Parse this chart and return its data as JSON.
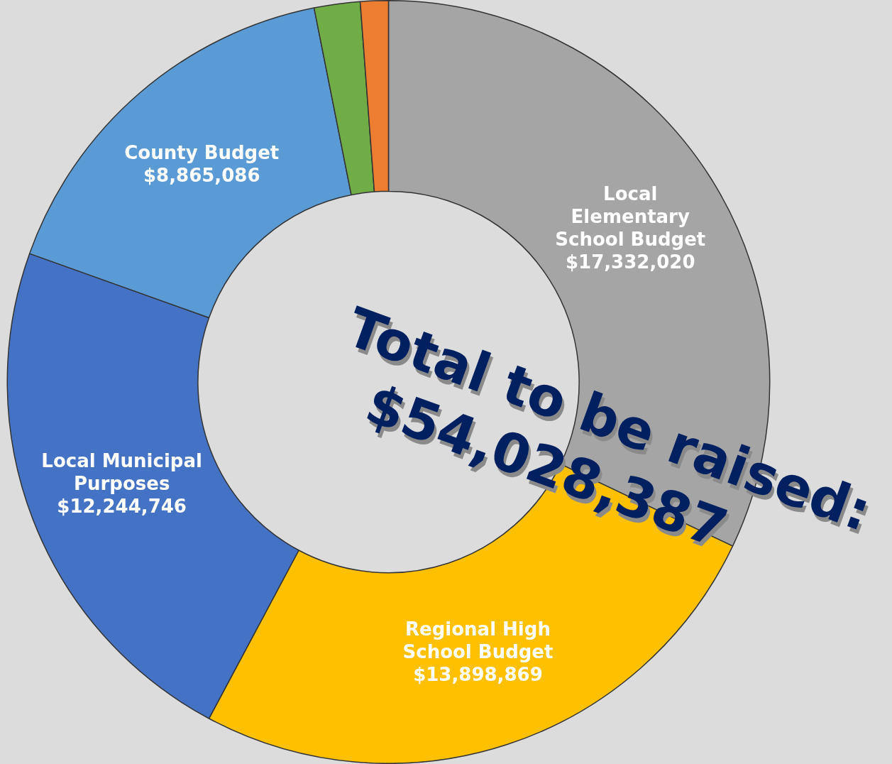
{
  "chart_data": {
    "type": "donut",
    "categories": [
      "Local Elementary School Budget",
      "Regional High School Budget",
      "Local Municipal Purposes",
      "County Budget",
      null,
      null
    ],
    "values": [
      17332020,
      13898869,
      12244746,
      8865086,
      1050000,
      640000
    ],
    "value_labels": [
      "$17,332,020",
      "$13,898,869",
      "$12,244,746",
      "$8,865,086",
      null,
      null
    ],
    "colors": [
      "#a5a5a5",
      "#ffc000",
      "#4472c4",
      "#5b9bd5",
      "#70ad47",
      "#ed7d31"
    ],
    "annotations": [
      "Total to be raised: $54,028,387"
    ],
    "legend": false
  }
}
